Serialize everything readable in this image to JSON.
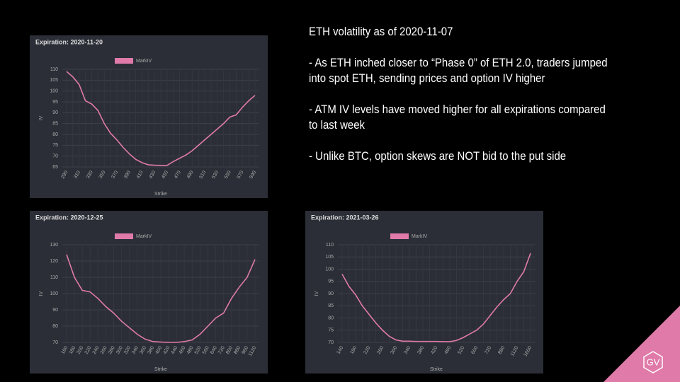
{
  "text": {
    "title": "ETH volatility as of 2020-11-07",
    "bullets": [
      "- As ETH inched closer to “Phase 0” of ETH 2.0, traders jumped into spot ETH, sending prices and option IV higher",
      "- ATM IV levels have moved higher for all expirations compared to last week",
      "- Unlike BTC, option skews are NOT bid to the put side"
    ]
  },
  "logo": "GV",
  "chart_data": [
    {
      "type": "line",
      "title": "Expiration: 2020-11-20",
      "x_label": "Strike",
      "y_label": "IV",
      "grid": true,
      "categories": [
        "290",
        null,
        "310",
        null,
        "330",
        null,
        "350",
        null,
        "370",
        null,
        "390",
        null,
        "410",
        null,
        "430",
        null,
        "450",
        null,
        "470",
        null,
        "490",
        null,
        "510",
        null,
        "530",
        null,
        "550",
        null,
        "570",
        null,
        "590"
      ],
      "series": [
        {
          "name": "MarkIV",
          "color": "#e07aa9",
          "values": [
            109,
            106.5,
            103,
            95.5,
            94,
            91,
            85,
            80.5,
            77.5,
            74,
            71,
            68.5,
            67,
            66,
            65.8,
            65.7,
            65.7,
            67.5,
            69,
            70.5,
            72.5,
            75,
            77.5,
            80,
            82.5,
            85,
            88,
            89,
            92.5,
            95.5,
            98
          ]
        }
      ],
      "ylim": [
        65,
        110
      ],
      "yticks": [
        65,
        70,
        75,
        80,
        85,
        90,
        95,
        100,
        105,
        110
      ]
    },
    {
      "type": "line",
      "title": "Expiration: 2020-12-25",
      "x_label": "Strike",
      "y_label": "IV",
      "grid": true,
      "categories": [
        "160",
        "180",
        "200",
        "220",
        "240",
        "260",
        "280",
        "300",
        "320",
        "340",
        "360",
        "380",
        "400",
        "420",
        "440",
        "460",
        "480",
        "520",
        "560",
        "640",
        "720",
        "800",
        "880",
        "960",
        "1120"
      ],
      "series": [
        {
          "name": "MarkIV",
          "color": "#e07aa9",
          "values": [
            124,
            110,
            102,
            101,
            97,
            92,
            88,
            83,
            79,
            75,
            72,
            70.5,
            70.2,
            70,
            70,
            70.5,
            71.5,
            75,
            80,
            85,
            88,
            97,
            104,
            110,
            121
          ]
        }
      ],
      "ylim": [
        70,
        130
      ],
      "yticks": [
        70,
        80,
        90,
        100,
        110,
        120,
        130
      ]
    },
    {
      "type": "line",
      "title": "Expiration: 2021-03-26",
      "x_label": "Strike",
      "y_label": "IV",
      "grid": true,
      "categories": [
        "140",
        null,
        "180",
        null,
        "220",
        null,
        "260",
        null,
        "300",
        null,
        "340",
        null,
        "380",
        null,
        "420",
        null,
        "460",
        null,
        "520",
        null,
        "600",
        null,
        "720",
        null,
        "880",
        null,
        "1120",
        null,
        "1600"
      ],
      "series": [
        {
          "name": "MarkIV",
          "color": "#e07aa9",
          "values": [
            98,
            93,
            89.5,
            85,
            81.5,
            78,
            75,
            72.5,
            71,
            70.5,
            70.5,
            70.4,
            70.4,
            70.4,
            70.4,
            70.3,
            70.3,
            70.8,
            72,
            73.5,
            75,
            77.5,
            81,
            84.5,
            87.5,
            90,
            95,
            99,
            106.5
          ]
        }
      ],
      "ylim": [
        70,
        110
      ],
      "yticks": [
        70,
        75,
        80,
        85,
        90,
        95,
        100,
        105,
        110
      ]
    }
  ]
}
